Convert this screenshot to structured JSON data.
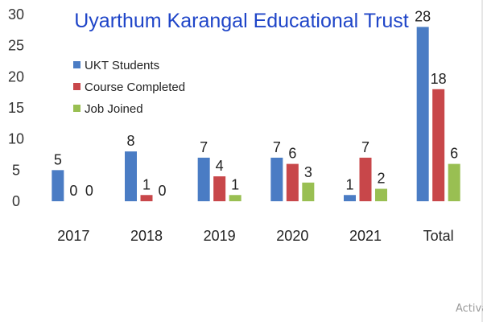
{
  "chart_data": {
    "type": "bar",
    "title": "Uyarthum Karangal Educational Trust",
    "categories": [
      "2017",
      "2018",
      "2019",
      "2020",
      "2021",
      "Total"
    ],
    "series": [
      {
        "name": "UKT Students",
        "color": "#4a7cc4",
        "values": [
          5,
          8,
          7,
          7,
          1,
          28
        ]
      },
      {
        "name": "Course Completed",
        "color": "#c8474a",
        "values": [
          0,
          1,
          4,
          6,
          7,
          18
        ]
      },
      {
        "name": "Job Joined",
        "color": "#99bf52",
        "values": [
          0,
          0,
          1,
          3,
          2,
          6
        ]
      }
    ],
    "ylim": [
      0,
      30
    ],
    "yticks": [
      0,
      5,
      10,
      15,
      20,
      25,
      30
    ],
    "title_color": "#1f45c8",
    "legend_position": "top-left",
    "grid": false
  },
  "watermark_text": "Activa"
}
